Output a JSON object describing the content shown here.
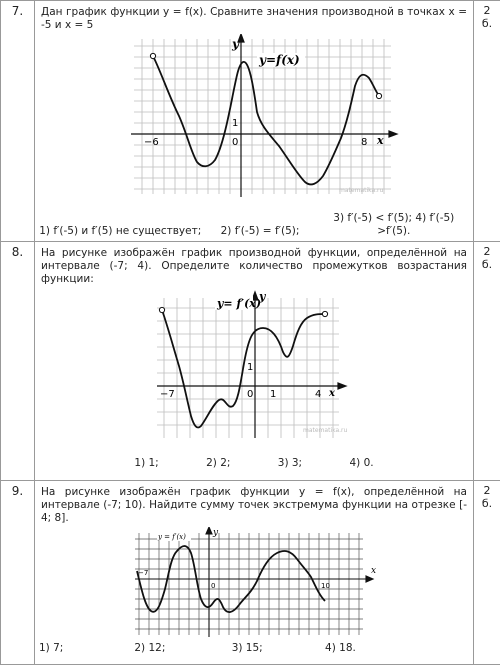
{
  "tasks": [
    {
      "number": "7.",
      "points": "2\nб.",
      "text": "Дан график функции y = f(x). Сравните значения производной в точках     x = -5 и x = 5",
      "graph_labels": {
        "y": "y",
        "x": "x",
        "curve": "y=f(x)",
        "one": "1",
        "zero": "0",
        "xmin": "−6",
        "xmax": "8",
        "watermark": "matematika.ru"
      },
      "answers": [
        "1) f′(-5) и f′(5) не существует;",
        "2) f′(-5) = f′(5);",
        "3) f′(-5) < f′(5); 4) f′(-5) >f′(5)."
      ]
    },
    {
      "number": "8.",
      "points": "2\nб.",
      "text": "На рисунке изображён график производной функции, определённой на интервале (-7; 4). Определите количество промежутков возрастания функции:",
      "graph_labels": {
        "y": "y",
        "x": "x",
        "curve": "y= f′(x)",
        "one_y": "1",
        "one_x": "1",
        "zero": "0",
        "xmin": "−7",
        "xmax": "4",
        "watermark": "matematika.ru"
      },
      "answers": [
        "1) 1;",
        "2) 2;",
        "3) 3;",
        "4) 0."
      ]
    },
    {
      "number": "9.",
      "points": "2\nб.",
      "text": "На рисунке изображён график функции y = f(x), определённой на интервале (-7; 10). Найдите сумму точек экстремума функции на отрезке [- 4; 8].",
      "graph_labels": {
        "y": "y",
        "x": "x",
        "curve": "y = f′(x)",
        "zero": "0",
        "xmin": "−7",
        "xmax": "10"
      },
      "answers": [
        "1) 7;",
        "2) 12;",
        "3) 15;",
        "4) 18."
      ]
    }
  ]
}
